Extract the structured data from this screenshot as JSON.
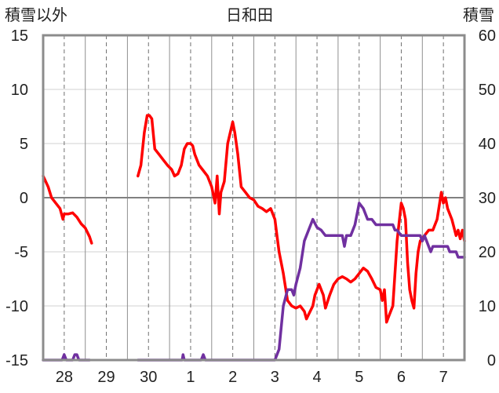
{
  "chart_data": {
    "type": "line",
    "title": "日和田",
    "left_axis_label": "積雪以外",
    "right_axis_label": "積雪",
    "left_ylim": [
      -15,
      15
    ],
    "left_ticks": [
      "15",
      "10",
      "5",
      "0",
      "-5",
      "-10",
      "-15"
    ],
    "right_ylim": [
      0,
      60
    ],
    "right_ticks": [
      "60",
      "50",
      "40",
      "30",
      "20",
      "10",
      "0"
    ],
    "xlim": [
      27.5,
      37.5
    ],
    "x_ticks": [
      {
        "label": "28",
        "x": 28
      },
      {
        "label": "29",
        "x": 29
      },
      {
        "label": "30",
        "x": 30
      },
      {
        "label": "1",
        "x": 31
      },
      {
        "label": "2",
        "x": 32
      },
      {
        "label": "3",
        "x": 33
      },
      {
        "label": "4",
        "x": 34
      },
      {
        "label": "5",
        "x": 35
      },
      {
        "label": "6",
        "x": 36
      },
      {
        "label": "7",
        "x": 37
      }
    ],
    "grid": true,
    "series": [
      {
        "key": "temperature",
        "axis": "left",
        "color": "#ff0000",
        "segments": [
          [
            [
              27.5,
              2.0
            ],
            [
              27.62,
              1.0
            ],
            [
              27.7,
              0.0
            ],
            [
              27.8,
              -0.5
            ],
            [
              27.9,
              -1.0
            ],
            [
              27.97,
              -2.0
            ],
            [
              28.0,
              -1.5
            ],
            [
              28.1,
              -1.5
            ],
            [
              28.2,
              -1.4
            ],
            [
              28.3,
              -1.8
            ],
            [
              28.4,
              -2.4
            ],
            [
              28.5,
              -2.8
            ],
            [
              28.6,
              -3.6
            ],
            [
              28.65,
              -4.2
            ]
          ],
          [
            [
              29.75,
              2.0
            ],
            [
              29.82,
              3.0
            ],
            [
              29.9,
              6.0
            ],
            [
              29.97,
              7.6
            ],
            [
              30.02,
              7.6
            ],
            [
              30.08,
              7.3
            ],
            [
              30.15,
              4.5
            ],
            [
              30.25,
              4.0
            ],
            [
              30.35,
              3.5
            ],
            [
              30.45,
              3.0
            ],
            [
              30.55,
              2.6
            ],
            [
              30.62,
              2.0
            ],
            [
              30.7,
              2.2
            ],
            [
              30.78,
              3.0
            ],
            [
              30.85,
              4.5
            ],
            [
              30.92,
              5.0
            ],
            [
              31.0,
              5.0
            ],
            [
              31.05,
              4.8
            ],
            [
              31.1,
              4.0
            ],
            [
              31.2,
              3.0
            ],
            [
              31.3,
              2.5
            ],
            [
              31.4,
              2.0
            ],
            [
              31.5,
              1.0
            ],
            [
              31.58,
              -0.5
            ],
            [
              31.63,
              2.0
            ],
            [
              31.68,
              -1.5
            ],
            [
              31.72,
              0.5
            ],
            [
              31.8,
              1.5
            ],
            [
              31.88,
              5.0
            ],
            [
              32.0,
              7.0
            ],
            [
              32.05,
              6.0
            ],
            [
              32.12,
              4.0
            ],
            [
              32.2,
              1.0
            ],
            [
              32.3,
              0.5
            ],
            [
              32.4,
              0.0
            ],
            [
              32.5,
              -0.2
            ],
            [
              32.55,
              -0.5
            ],
            [
              32.6,
              -0.8
            ],
            [
              32.7,
              -1.0
            ],
            [
              32.8,
              -1.3
            ],
            [
              32.9,
              -1.0
            ],
            [
              33.0,
              -2.0
            ],
            [
              33.05,
              -3.5
            ],
            [
              33.1,
              -5.0
            ],
            [
              33.2,
              -7.0
            ],
            [
              33.3,
              -9.5
            ],
            [
              33.4,
              -10.0
            ],
            [
              33.5,
              -10.2
            ],
            [
              33.6,
              -10.0
            ],
            [
              33.7,
              -10.5
            ],
            [
              33.75,
              -11.2
            ],
            [
              33.8,
              -10.8
            ],
            [
              33.9,
              -10.0
            ],
            [
              33.95,
              -9.0
            ],
            [
              34.05,
              -8.0
            ],
            [
              34.15,
              -9.0
            ],
            [
              34.2,
              -10.2
            ],
            [
              34.3,
              -9.0
            ],
            [
              34.4,
              -8.0
            ],
            [
              34.5,
              -7.5
            ],
            [
              34.6,
              -7.3
            ],
            [
              34.7,
              -7.5
            ],
            [
              34.8,
              -7.8
            ],
            [
              34.9,
              -7.5
            ],
            [
              35.0,
              -7.0
            ],
            [
              35.1,
              -6.5
            ],
            [
              35.2,
              -6.8
            ],
            [
              35.3,
              -7.5
            ],
            [
              35.4,
              -8.3
            ],
            [
              35.5,
              -8.5
            ],
            [
              35.55,
              -9.5
            ],
            [
              35.6,
              -8.5
            ],
            [
              35.65,
              -11.5
            ],
            [
              35.7,
              -11.0
            ],
            [
              35.8,
              -10.0
            ],
            [
              35.85,
              -7.0
            ],
            [
              35.9,
              -4.0
            ],
            [
              36.0,
              -0.5
            ],
            [
              36.05,
              -1.0
            ],
            [
              36.1,
              -2.0
            ],
            [
              36.15,
              -6.0
            ],
            [
              36.2,
              -8.5
            ],
            [
              36.25,
              -9.5
            ],
            [
              36.3,
              -10.2
            ],
            [
              36.35,
              -7.0
            ],
            [
              36.4,
              -5.0
            ],
            [
              36.45,
              -4.0
            ],
            [
              36.55,
              -3.5
            ],
            [
              36.65,
              -3.0
            ],
            [
              36.75,
              -3.0
            ],
            [
              36.85,
              -2.0
            ],
            [
              36.95,
              0.5
            ],
            [
              37.0,
              -0.5
            ],
            [
              37.05,
              0.0
            ],
            [
              37.1,
              -1.0
            ],
            [
              37.2,
              -2.0
            ],
            [
              37.3,
              -3.5
            ],
            [
              37.35,
              -3.0
            ],
            [
              37.4,
              -3.8
            ],
            [
              37.45,
              -3.0
            ],
            [
              37.5,
              -4.0
            ]
          ]
        ]
      },
      {
        "key": "snow_depth",
        "axis": "right",
        "color": "#7030a0",
        "segments": [
          [
            [
              27.5,
              0.0
            ],
            [
              27.95,
              0.0
            ],
            [
              28.0,
              1.0
            ],
            [
              28.05,
              0.0
            ],
            [
              28.2,
              0.0
            ],
            [
              28.25,
              1.0
            ],
            [
              28.3,
              1.0
            ],
            [
              28.35,
              0.0
            ],
            [
              28.6,
              0.0
            ]
          ],
          [
            [
              29.75,
              0.0
            ],
            [
              30.8,
              0.0
            ],
            [
              30.82,
              1.0
            ],
            [
              30.85,
              0.0
            ],
            [
              31.0,
              0.0
            ],
            [
              31.25,
              0.0
            ],
            [
              31.3,
              1.0
            ],
            [
              31.35,
              0.0
            ],
            [
              32.5,
              0.0
            ],
            [
              33.0,
              0.0
            ],
            [
              33.1,
              2.0
            ],
            [
              33.2,
              10.0
            ],
            [
              33.3,
              13.0
            ],
            [
              33.4,
              13.0
            ],
            [
              33.45,
              12.0
            ],
            [
              33.5,
              14.0
            ],
            [
              33.6,
              17.0
            ],
            [
              33.7,
              22.0
            ],
            [
              33.8,
              24.0
            ],
            [
              33.9,
              26.0
            ],
            [
              34.0,
              24.5
            ],
            [
              34.1,
              24.0
            ],
            [
              34.2,
              23.0
            ],
            [
              34.5,
              23.0
            ],
            [
              34.6,
              23.0
            ],
            [
              34.65,
              21.0
            ],
            [
              34.7,
              23.0
            ],
            [
              34.8,
              23.0
            ],
            [
              34.9,
              25.0
            ],
            [
              35.0,
              29.0
            ],
            [
              35.1,
              28.0
            ],
            [
              35.2,
              26.0
            ],
            [
              35.3,
              26.0
            ],
            [
              35.4,
              25.0
            ],
            [
              35.6,
              25.0
            ],
            [
              35.8,
              25.0
            ],
            [
              35.85,
              24.0
            ],
            [
              35.9,
              24.0
            ],
            [
              36.0,
              23.0
            ],
            [
              36.1,
              23.0
            ],
            [
              36.3,
              23.0
            ],
            [
              36.4,
              23.0
            ],
            [
              36.45,
              23.0
            ],
            [
              36.5,
              22.0
            ],
            [
              36.55,
              23.0
            ],
            [
              36.6,
              22.0
            ],
            [
              36.7,
              20.0
            ],
            [
              36.75,
              21.0
            ],
            [
              36.8,
              21.0
            ],
            [
              36.9,
              21.0
            ],
            [
              37.1,
              21.0
            ],
            [
              37.15,
              20.0
            ],
            [
              37.3,
              20.0
            ],
            [
              37.35,
              19.0
            ],
            [
              37.5,
              19.0
            ]
          ]
        ]
      }
    ]
  }
}
